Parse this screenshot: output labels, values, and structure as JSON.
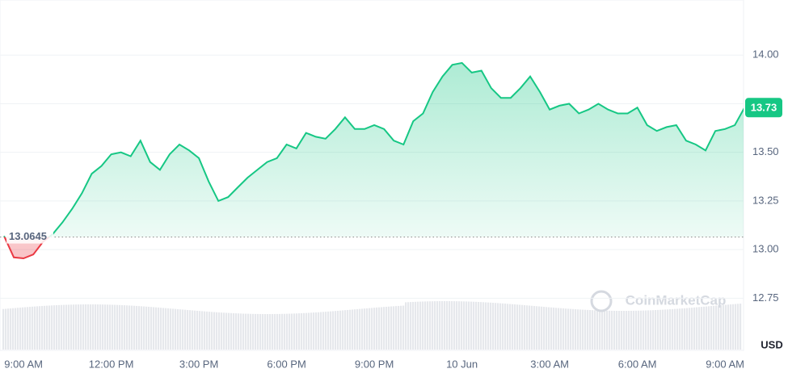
{
  "chart_data": {
    "type": "line",
    "categories": [
      null,
      null,
      "9:00 AM",
      null,
      null,
      null,
      null,
      null,
      null,
      null,
      null,
      "12:00 PM",
      null,
      null,
      null,
      null,
      null,
      null,
      null,
      null,
      "3:00 PM",
      null,
      null,
      null,
      null,
      null,
      null,
      null,
      null,
      "6:00 PM",
      null,
      null,
      null,
      null,
      null,
      null,
      null,
      null,
      "9:00 PM",
      null,
      null,
      null,
      null,
      null,
      null,
      null,
      null,
      "10 Jun",
      null,
      null,
      null,
      null,
      null,
      null,
      null,
      null,
      "3:00 AM",
      null,
      null,
      null,
      null,
      null,
      null,
      null,
      null,
      "6:00 AM",
      null,
      null,
      null,
      null,
      null,
      null,
      null,
      null,
      "9:00 AM",
      null,
      null
    ],
    "values": [
      13.07,
      12.96,
      12.955,
      12.975,
      13.04,
      13.08,
      13.14,
      13.21,
      13.29,
      13.39,
      13.43,
      13.49,
      13.5,
      13.48,
      13.56,
      13.45,
      13.41,
      13.49,
      13.54,
      13.51,
      13.47,
      13.35,
      13.25,
      13.27,
      13.32,
      13.37,
      13.41,
      13.45,
      13.47,
      13.54,
      13.52,
      13.6,
      13.58,
      13.57,
      13.62,
      13.68,
      13.62,
      13.62,
      13.64,
      13.62,
      13.56,
      13.54,
      13.66,
      13.7,
      13.81,
      13.89,
      13.95,
      13.96,
      13.91,
      13.92,
      13.83,
      13.78,
      13.78,
      13.83,
      13.89,
      13.81,
      13.72,
      13.74,
      13.75,
      13.7,
      13.72,
      13.75,
      13.72,
      13.7,
      13.7,
      13.73,
      13.64,
      13.61,
      13.63,
      13.64,
      13.56,
      13.54,
      13.51,
      13.61,
      13.62,
      13.64,
      13.73
    ],
    "baseline": 13.0645,
    "up_color": "#16c784",
    "down_color": "#ea3943",
    "ylim": [
      12.49,
      14.25
    ],
    "yticks": [
      {
        "value": 12.75,
        "label": "12.75"
      },
      {
        "value": 13,
        "label": "13.00"
      },
      {
        "value": 13.25,
        "label": "13.25"
      },
      {
        "value": 13.5,
        "label": "13.50"
      },
      {
        "value": 13.75,
        "label": "13.75"
      },
      {
        "value": 14,
        "label": "14.00"
      }
    ],
    "y_unit": "USD",
    "watermark": "CoinMarketCap",
    "grid": true
  }
}
